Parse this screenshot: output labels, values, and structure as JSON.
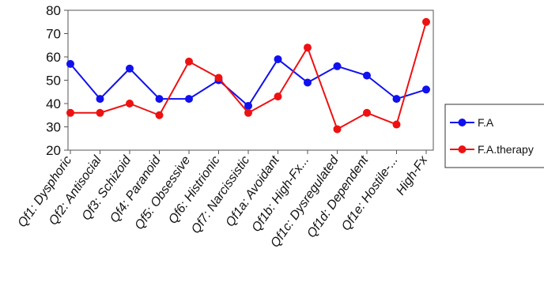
{
  "chart_data": {
    "type": "line",
    "categories": [
      "Qf1: Dysphoric",
      "Qf2: Antisocial",
      "Qf3: Schizoid",
      "Qf4: Paranoid",
      "Qf5: Obsessive",
      "Qf6: Histrionic",
      "Qf7: Narcissistic",
      "Qf1a: Avoidant",
      "Qf1b: High-Fx...",
      "Qf1c: Dysregulated",
      "Qf1d: Dependent",
      "Qf1e: Hostile-...",
      "High-Fx"
    ],
    "series": [
      {
        "name": "F.A",
        "color": "#1010f0",
        "values": [
          57,
          42,
          55,
          42,
          42,
          50,
          39,
          59,
          49,
          56,
          52,
          42,
          46
        ]
      },
      {
        "name": "F.A.therapy",
        "color": "#ee1111",
        "values": [
          36,
          36,
          40,
          35,
          58,
          51,
          36,
          43,
          64,
          29,
          36,
          31,
          75
        ]
      }
    ],
    "title": "",
    "xlabel": "",
    "ylabel": "",
    "ylim": [
      20,
      80
    ],
    "yticks": [
      20,
      30,
      40,
      50,
      60,
      70,
      80
    ],
    "grid": false,
    "legend_position": "right"
  }
}
